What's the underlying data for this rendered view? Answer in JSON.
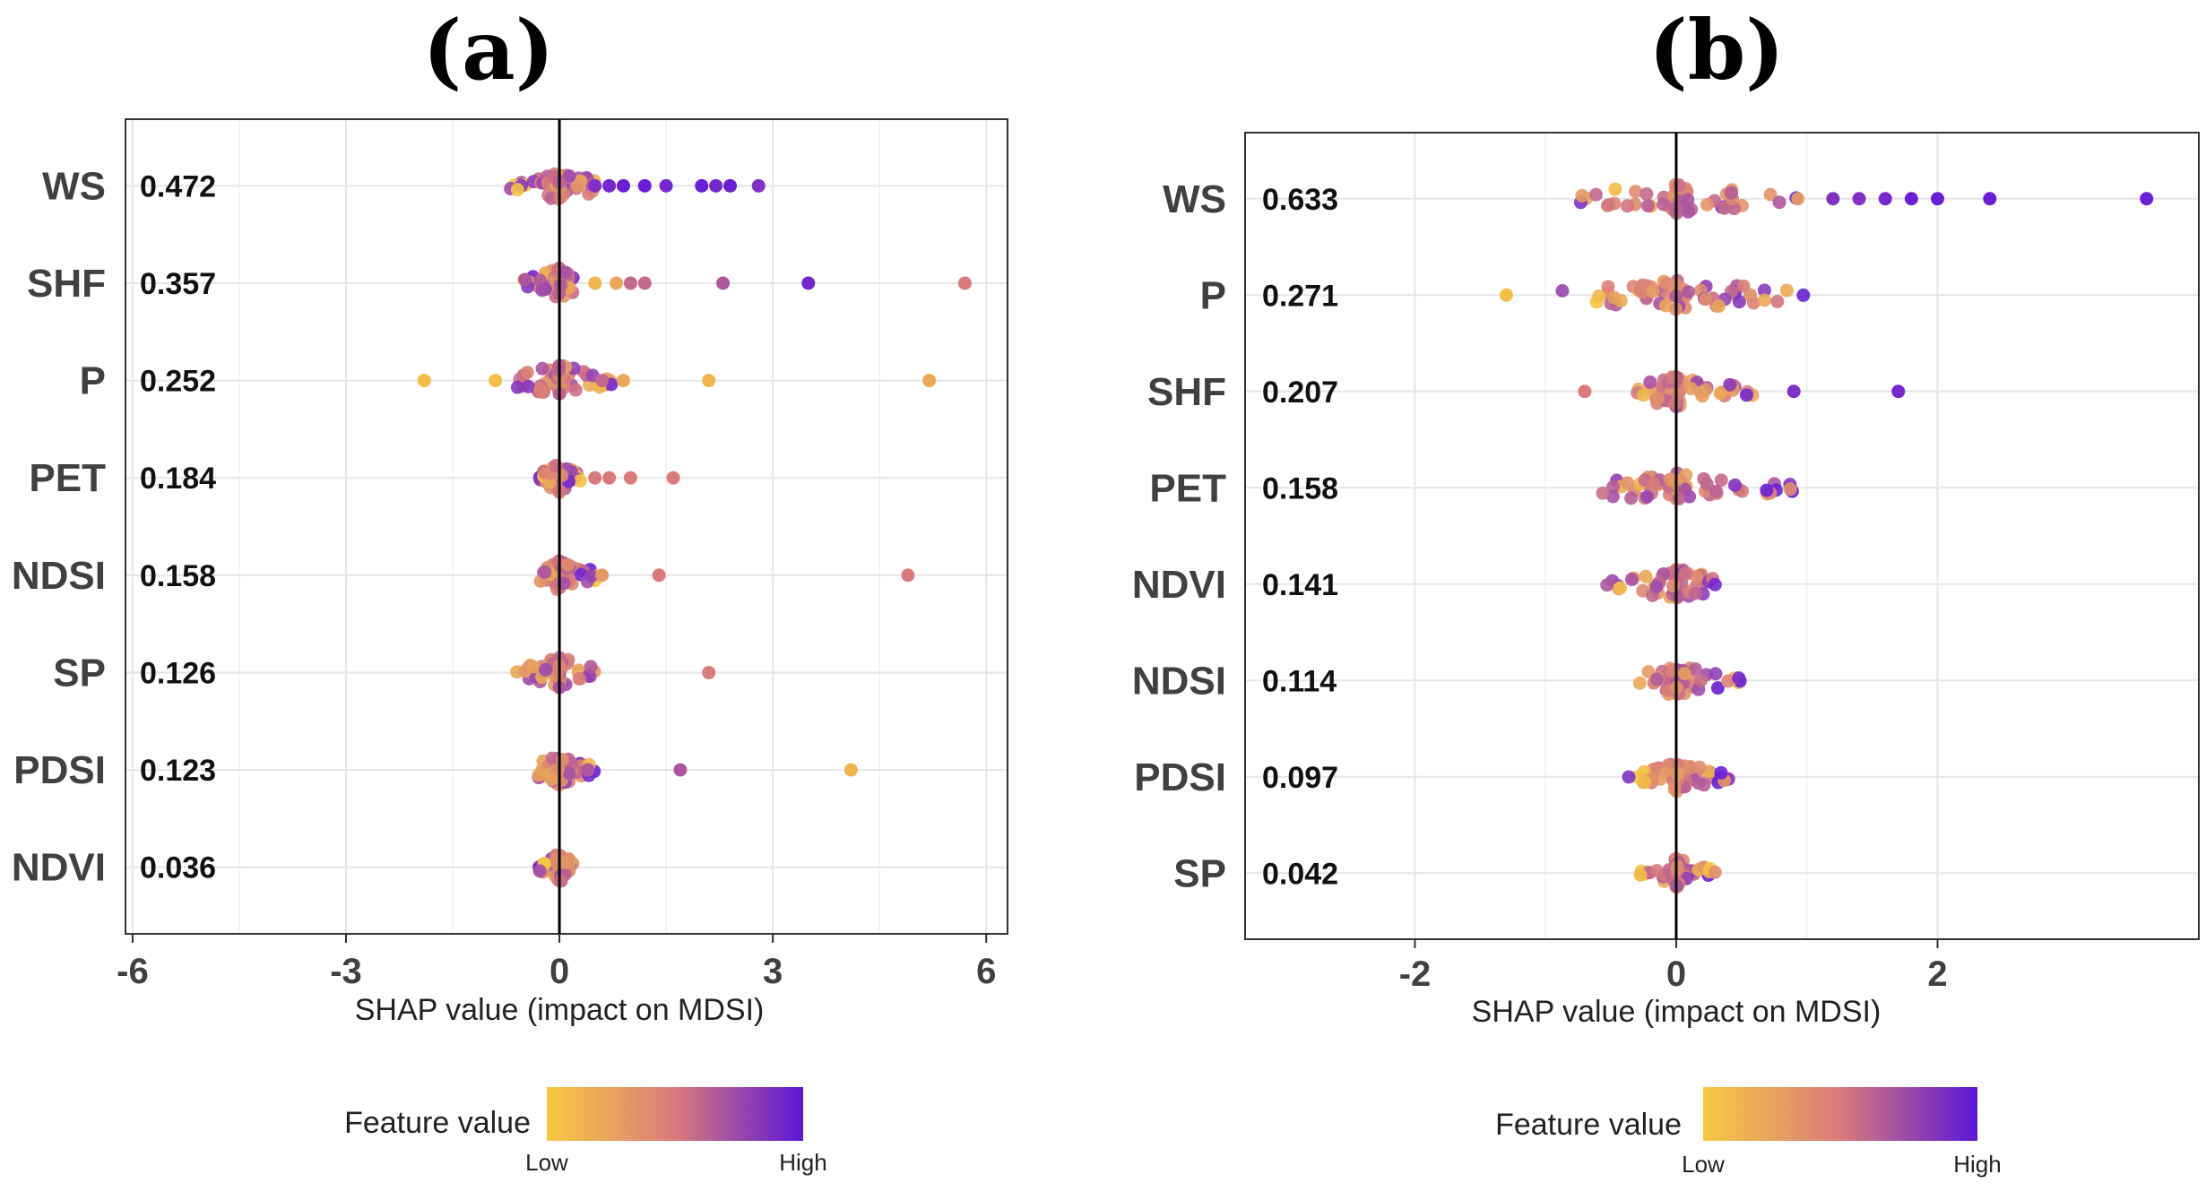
{
  "colors": {
    "low": "#f5c542",
    "mid": "#d97b7b",
    "high": "#6a1fd6",
    "zero_line": "#000000",
    "grid": "#e6e6e6"
  },
  "chart_data": [
    {
      "type": "scatter",
      "subtype": "shap-beeswarm",
      "panel_label": "(a)",
      "xlabel": "SHAP value (impact on MDSI)",
      "xlim": [
        -6.1,
        6.3
      ],
      "xticks": [
        "-6",
        "-3",
        "0",
        "3",
        "6"
      ],
      "xtick_values": [
        -6,
        -3,
        0,
        3,
        6
      ],
      "grid": true,
      "legend": {
        "title": "Feature value",
        "low": "Low",
        "high": "High",
        "placement": "bottom"
      },
      "features": [
        {
          "name": "WS",
          "importance": "0.472",
          "spread": [
            -0.7,
            0.5
          ],
          "tail": [
            [
              0.5,
              0.9
            ],
            [
              0.7,
              0.95
            ],
            [
              0.9,
              1
            ],
            [
              1.2,
              1
            ],
            [
              1.5,
              0.95
            ],
            [
              2.0,
              1
            ],
            [
              2.2,
              0.95
            ],
            [
              2.4,
              1
            ],
            [
              2.8,
              0.9
            ]
          ]
        },
        {
          "name": "SHF",
          "importance": "0.357",
          "spread": [
            -0.5,
            0.2
          ],
          "tail": [
            [
              0.5,
              0.1
            ],
            [
              0.8,
              0.2
            ],
            [
              1.0,
              0.6
            ],
            [
              1.2,
              0.6
            ],
            [
              2.3,
              0.7
            ],
            [
              3.5,
              0.95
            ],
            [
              5.7,
              0.5
            ]
          ]
        },
        {
          "name": "P",
          "importance": "0.252",
          "spread": [
            -0.6,
            0.9
          ],
          "tail": [
            [
              -1.9,
              0.05
            ],
            [
              -0.9,
              0.05
            ],
            [
              0.6,
              0.6
            ],
            [
              0.9,
              0.2
            ],
            [
              2.1,
              0.1
            ],
            [
              5.2,
              0.2
            ]
          ]
        },
        {
          "name": "PET",
          "importance": "0.184",
          "spread": [
            -0.3,
            0.3
          ],
          "tail": [
            [
              0.5,
              0.5
            ],
            [
              0.7,
              0.5
            ],
            [
              1.0,
              0.5
            ],
            [
              1.6,
              0.5
            ]
          ]
        },
        {
          "name": "NDSI",
          "importance": "0.158",
          "spread": [
            -0.3,
            0.6
          ],
          "tail": [
            [
              0.6,
              0.3
            ],
            [
              1.4,
              0.5
            ],
            [
              4.9,
              0.5
            ]
          ]
        },
        {
          "name": "SP",
          "importance": "0.126",
          "spread": [
            -0.6,
            0.5
          ],
          "tail": [
            [
              2.1,
              0.5
            ]
          ]
        },
        {
          "name": "PDSI",
          "importance": "0.123",
          "spread": [
            -0.3,
            0.5
          ],
          "tail": [
            [
              0.4,
              0.7
            ],
            [
              1.7,
              0.7
            ],
            [
              4.1,
              0.1
            ]
          ]
        },
        {
          "name": "NDVI",
          "importance": "0.036",
          "spread": [
            -0.3,
            0.2
          ],
          "tail": []
        }
      ]
    },
    {
      "type": "scatter",
      "subtype": "shap-beeswarm",
      "panel_label": "(b)",
      "xlabel": "SHAP value (impact on MDSI)",
      "xlim": [
        -3.3,
        4.0
      ],
      "xticks": [
        "-2",
        "0",
        "2"
      ],
      "xtick_values": [
        -2,
        0,
        2
      ],
      "grid": true,
      "legend": {
        "title": "Feature value",
        "low": "Low",
        "high": "High",
        "placement": "bottom"
      },
      "features": [
        {
          "name": "WS",
          "importance": "0.633",
          "spread": [
            -1.1,
            1.0
          ],
          "tail": [
            [
              1.2,
              0.9
            ],
            [
              1.4,
              0.9
            ],
            [
              1.6,
              0.95
            ],
            [
              1.8,
              1
            ],
            [
              2.0,
              1
            ],
            [
              2.4,
              1
            ],
            [
              3.6,
              1
            ]
          ]
        },
        {
          "name": "P",
          "importance": "0.271",
          "spread": [
            -0.9,
            1.1
          ],
          "tail": [
            [
              -1.3,
              0.05
            ]
          ]
        },
        {
          "name": "SHF",
          "importance": "0.207",
          "spread": [
            -0.3,
            0.6
          ],
          "tail": [
            [
              -0.7,
              0.5
            ],
            [
              0.9,
              0.9
            ],
            [
              1.7,
              0.95
            ]
          ]
        },
        {
          "name": "PET",
          "importance": "0.158",
          "spread": [
            -0.6,
            0.9
          ],
          "tail": []
        },
        {
          "name": "NDVI",
          "importance": "0.141",
          "spread": [
            -0.6,
            0.3
          ],
          "tail": []
        },
        {
          "name": "NDSI",
          "importance": "0.114",
          "spread": [
            -0.3,
            0.5
          ],
          "tail": []
        },
        {
          "name": "PDSI",
          "importance": "0.097",
          "spread": [
            -0.4,
            0.4
          ],
          "tail": []
        },
        {
          "name": "SP",
          "importance": "0.042",
          "spread": [
            -0.3,
            0.3
          ],
          "tail": []
        }
      ]
    }
  ]
}
